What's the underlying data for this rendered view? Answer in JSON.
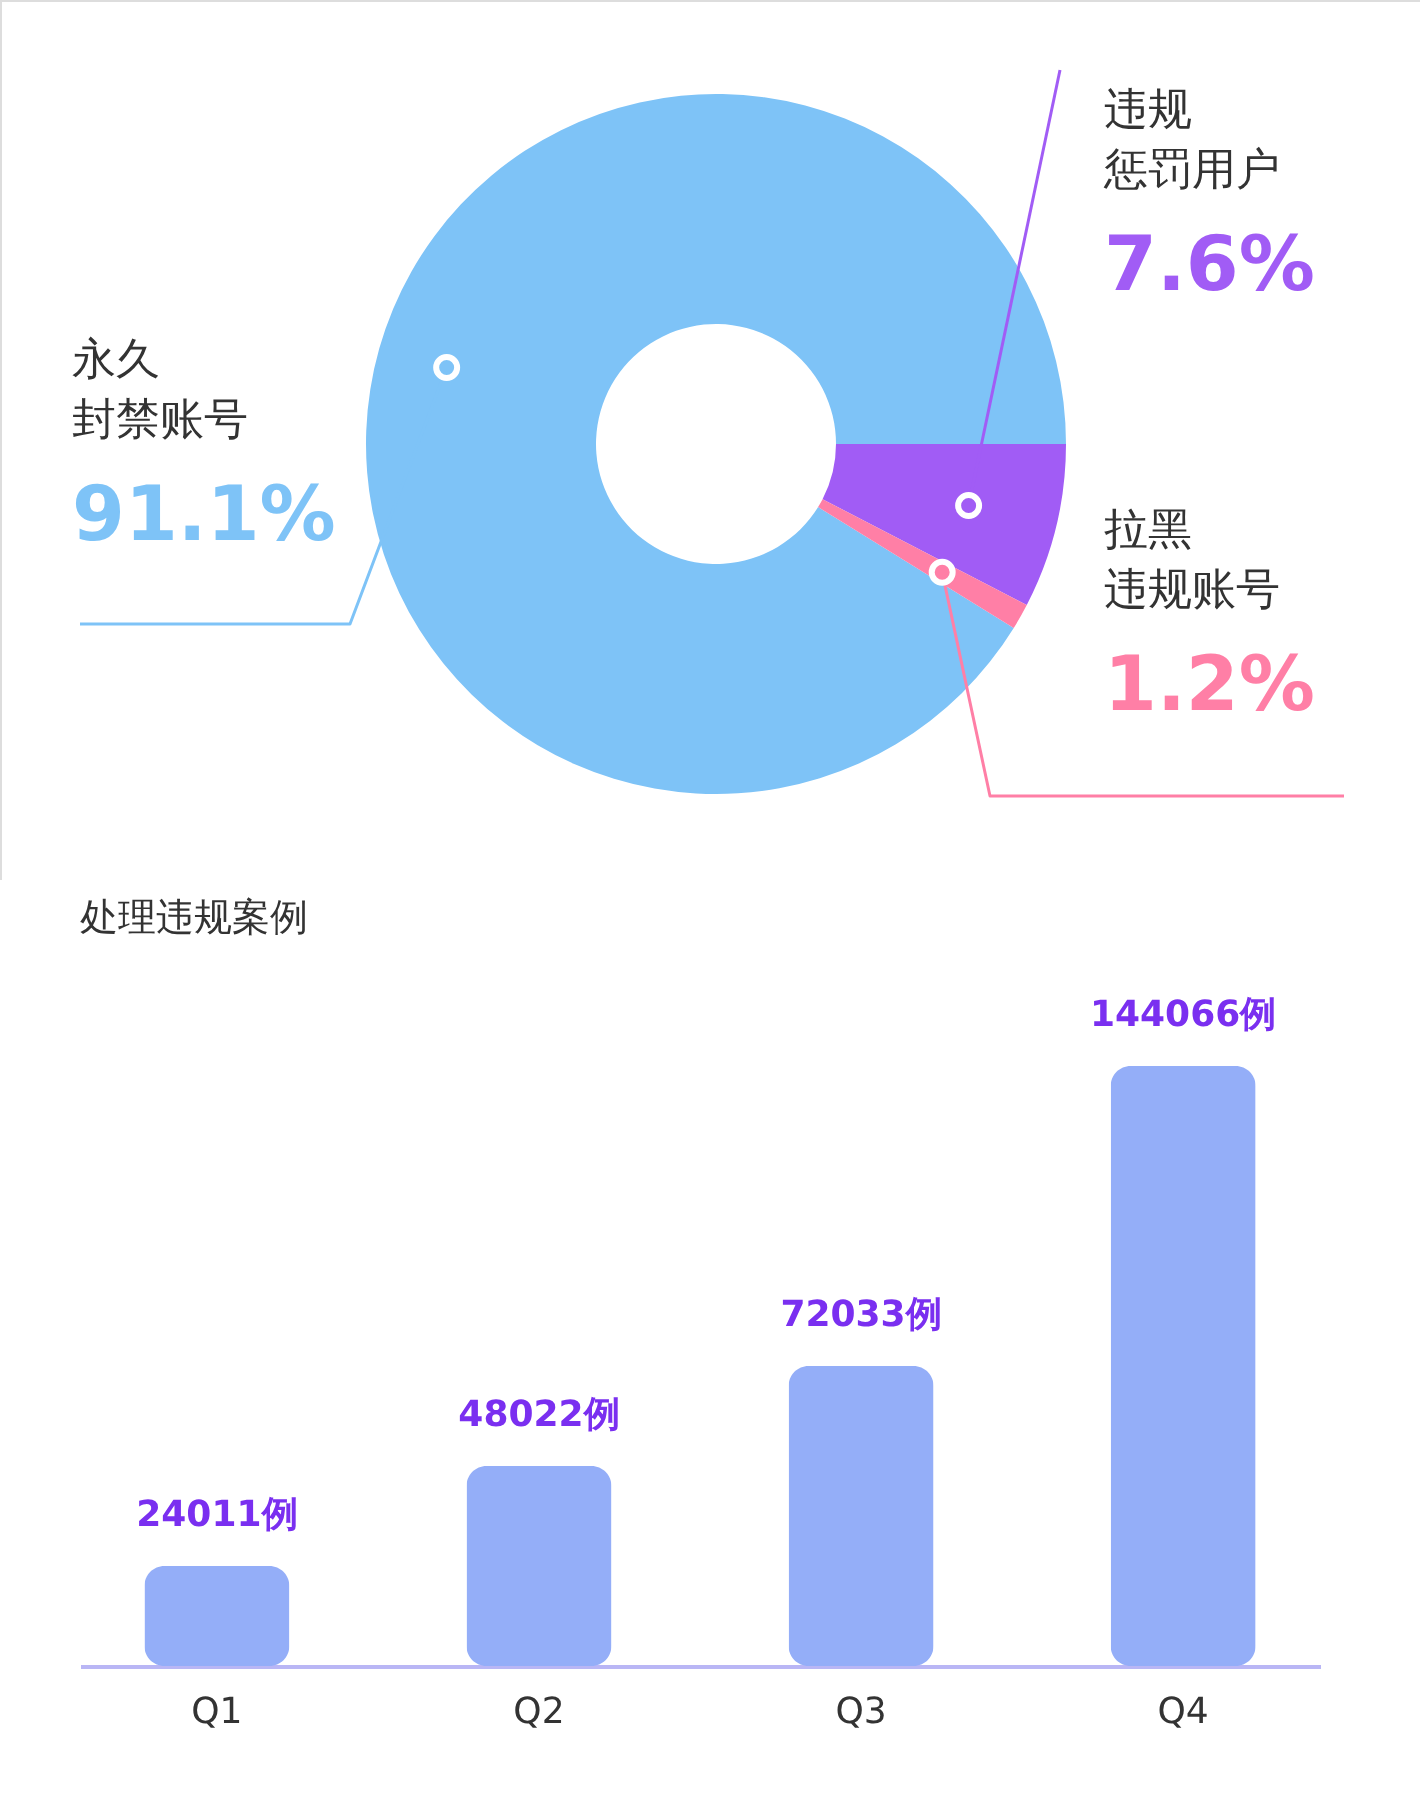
{
  "chart_data": [
    {
      "type": "donut",
      "categories": [
        "永久封禁账号",
        "违规惩罚用户",
        "拉黑违规账号"
      ],
      "values": [
        91.1,
        7.6,
        1.2
      ],
      "colors": [
        "#7ec3f7",
        "#a15cf5",
        "#ff7fa6"
      ],
      "value_labels": [
        "91.1%",
        "7.6%",
        "1.2%"
      ]
    },
    {
      "type": "bar",
      "title": "处理违规案例",
      "categories": [
        "Q1",
        "Q2",
        "Q3",
        "Q4"
      ],
      "values": [
        24011,
        48022,
        72033,
        144066
      ],
      "color": "#94aef8",
      "value_labels": [
        "24011例",
        "48022例",
        "72033例",
        "144066例"
      ],
      "tick_labels": "x",
      "grid": false
    }
  ]
}
